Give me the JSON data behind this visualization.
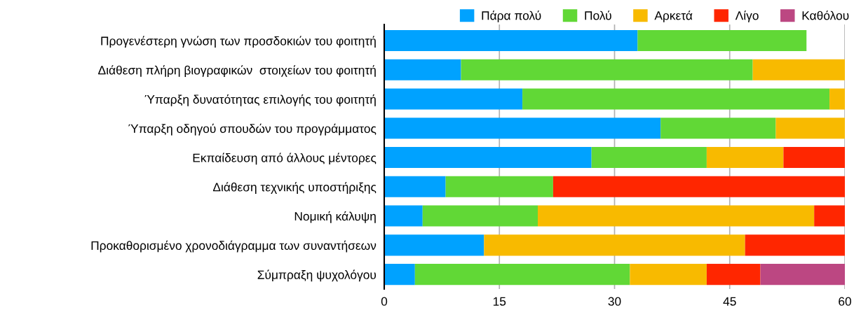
{
  "chart_data": {
    "type": "bar",
    "orientation": "horizontal",
    "stacked": true,
    "categories": [
      "Προγενέστερη γνώση των προσδοκιών του φοιτητή",
      "Διάθεση πλήρη βιογραφικών  στοιχείων του φοιτητή",
      "Ύπαρξη δυνατότητας επιλογής του φοιτητή",
      "Ύπαρξη οδηγού σπουδών του προγράμματος",
      "Εκπαίδευση από άλλους μέντορες",
      "Διάθεση τεχνικής υποστήριξης",
      "Νομική κάλυψη",
      "Προκαθορισμένο χρονοδιάγραμμα των συναντήσεων",
      "Σύμπραξη ψυχολόγου"
    ],
    "series": [
      {
        "name": "Πάρα πολύ",
        "color": "#00a2ff",
        "values": [
          33,
          10,
          18,
          36,
          27,
          8,
          5,
          13,
          4
        ]
      },
      {
        "name": "Πολύ",
        "color": "#61d836",
        "values": [
          22,
          38,
          40,
          15,
          15,
          14,
          15,
          0,
          28
        ]
      },
      {
        "name": "Αρκετά",
        "color": "#f8ba00",
        "values": [
          0,
          12,
          2,
          9,
          10,
          0,
          36,
          34,
          10
        ]
      },
      {
        "name": "Λίγο",
        "color": "#ff2600",
        "values": [
          0,
          0,
          0,
          0,
          8,
          38,
          4,
          13,
          7
        ]
      },
      {
        "name": "Καθόλου",
        "color": "#bc4782",
        "values": [
          0,
          0,
          0,
          0,
          0,
          0,
          0,
          0,
          11
        ]
      }
    ],
    "xlim": [
      0,
      60
    ],
    "xticks": [
      0,
      15,
      30,
      45,
      60
    ],
    "grid": "x",
    "legend": "top right"
  }
}
